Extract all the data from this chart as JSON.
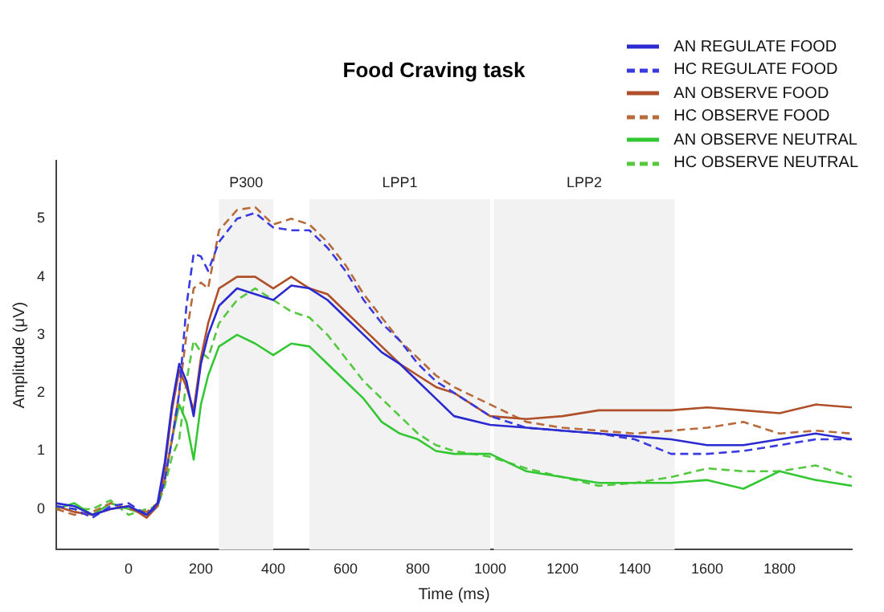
{
  "chart_data": {
    "type": "line",
    "title": "Food Craving task",
    "xlabel": "Time (ms)",
    "ylabel": "Amplitude (μV)",
    "x": [
      -200,
      -150,
      -100,
      -50,
      0,
      50,
      80,
      100,
      120,
      140,
      160,
      180,
      200,
      220,
      250,
      300,
      350,
      400,
      450,
      500,
      550,
      600,
      650,
      700,
      750,
      800,
      850,
      900,
      1000,
      1100,
      1200,
      1300,
      1400,
      1500,
      1600,
      1700,
      1800,
      1900,
      2000
    ],
    "series": [
      {
        "name": "AN REGULATE FOOD",
        "color": "#2a2ad0",
        "line_style": "solid",
        "values": [
          0.1,
          0.05,
          -0.1,
          0,
          0.05,
          -0.1,
          0.1,
          0.8,
          1.8,
          2.5,
          2.2,
          1.6,
          2.5,
          3.0,
          3.5,
          3.8,
          3.7,
          3.6,
          3.85,
          3.8,
          3.6,
          3.3,
          3.0,
          2.7,
          2.5,
          2.2,
          1.9,
          1.6,
          1.45,
          1.4,
          1.35,
          1.3,
          1.25,
          1.2,
          1.1,
          1.1,
          1.2,
          1.3,
          1.2
        ]
      },
      {
        "name": "HC REGULATE FOOD",
        "color": "#3a3ae0",
        "line_style": "dashed",
        "values": [
          0.05,
          0,
          -0.15,
          0.05,
          0.1,
          -0.1,
          0.05,
          0.5,
          1.2,
          2.0,
          3.5,
          4.4,
          4.35,
          4.1,
          4.6,
          5.0,
          5.1,
          4.85,
          4.8,
          4.8,
          4.5,
          4.1,
          3.6,
          3.2,
          2.9,
          2.5,
          2.2,
          2.0,
          1.6,
          1.4,
          1.35,
          1.3,
          1.2,
          0.95,
          0.95,
          1.0,
          1.1,
          1.2,
          1.2
        ]
      },
      {
        "name": "AN OBSERVE FOOD",
        "color": "#b0502a",
        "line_style": "solid",
        "values": [
          0.05,
          -0.05,
          -0.1,
          0,
          0.05,
          -0.15,
          0.05,
          0.7,
          1.7,
          2.4,
          2.1,
          1.7,
          2.6,
          3.2,
          3.8,
          4.0,
          4.0,
          3.8,
          4.0,
          3.8,
          3.7,
          3.4,
          3.1,
          2.8,
          2.5,
          2.3,
          2.1,
          2.0,
          1.6,
          1.55,
          1.6,
          1.7,
          1.7,
          1.7,
          1.75,
          1.7,
          1.65,
          1.8,
          1.75
        ]
      },
      {
        "name": "HC OBSERVE FOOD",
        "color": "#b86a3a",
        "line_style": "dashed",
        "values": [
          0,
          -0.1,
          -0.05,
          0.1,
          0,
          -0.05,
          0.1,
          0.5,
          1.2,
          2.0,
          3.0,
          3.8,
          3.9,
          3.8,
          4.8,
          5.15,
          5.2,
          4.9,
          5.0,
          4.9,
          4.6,
          4.2,
          3.7,
          3.3,
          2.9,
          2.6,
          2.3,
          2.1,
          1.8,
          1.5,
          1.4,
          1.35,
          1.3,
          1.35,
          1.4,
          1.5,
          1.3,
          1.35,
          1.3
        ]
      },
      {
        "name": "AN OBSERVE NEUTRAL",
        "color": "#33c833",
        "line_style": "solid",
        "values": [
          0,
          0.1,
          -0.1,
          0.1,
          0,
          -0.1,
          0.05,
          0.5,
          1.2,
          1.8,
          1.5,
          0.85,
          1.8,
          2.3,
          2.8,
          3.0,
          2.85,
          2.65,
          2.85,
          2.8,
          2.5,
          2.2,
          1.9,
          1.5,
          1.3,
          1.2,
          1.0,
          0.95,
          0.95,
          0.65,
          0.55,
          0.45,
          0.45,
          0.45,
          0.5,
          0.35,
          0.65,
          0.5,
          0.4
        ]
      },
      {
        "name": "HC OBSERVE NEUTRAL",
        "color": "#55c840",
        "line_style": "dashed",
        "values": [
          0.05,
          0,
          0,
          0.15,
          -0.1,
          0,
          0.05,
          0.4,
          0.9,
          1.2,
          2.2,
          2.9,
          2.7,
          2.6,
          3.2,
          3.6,
          3.8,
          3.6,
          3.4,
          3.3,
          3.0,
          2.6,
          2.2,
          1.9,
          1.6,
          1.3,
          1.1,
          1.0,
          0.9,
          0.7,
          0.55,
          0.4,
          0.45,
          0.55,
          0.7,
          0.65,
          0.65,
          0.75,
          0.55
        ]
      }
    ],
    "xlim": [
      -200,
      2000
    ],
    "ylim": [
      -0.7,
      6
    ],
    "xticks": [
      0,
      200,
      400,
      600,
      800,
      1000,
      1200,
      1400,
      1600,
      1800
    ],
    "yticks": [
      0,
      1,
      2,
      3,
      4,
      5
    ],
    "bands": [
      {
        "axis": "x",
        "from": 250,
        "to": 400,
        "label": "P300",
        "color": "#f2f2f2"
      },
      {
        "axis": "x",
        "from": 500,
        "to": 1000,
        "label": "LPP1",
        "color": "#f2f2f2"
      },
      {
        "axis": "x",
        "from": 1010,
        "to": 1510,
        "label": "LPP2",
        "color": "#f2f2f2"
      }
    ],
    "grid": false,
    "legend": "top right",
    "marker": "none"
  }
}
